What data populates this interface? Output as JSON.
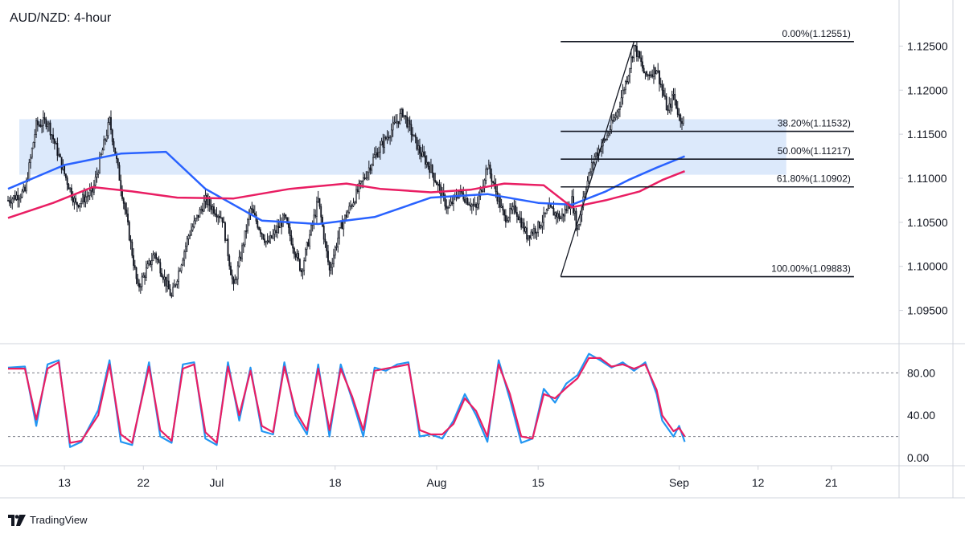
{
  "chart_data": [
    {
      "type": "candlestick",
      "title": "AUD/NZD: 4-hour",
      "ylim": [
        1.0915,
        1.1295
      ],
      "y_ticks": [
        {
          "value": 1.125,
          "label": "1.12500"
        },
        {
          "value": 1.12,
          "label": "1.12000"
        },
        {
          "value": 1.115,
          "label": "1.11500"
        },
        {
          "value": 1.11,
          "label": "1.11000"
        },
        {
          "value": 1.105,
          "label": "1.10500"
        },
        {
          "value": 1.1,
          "label": "1.10000"
        },
        {
          "value": 1.095,
          "label": "1.09500"
        }
      ],
      "x_ticks": [
        {
          "label": "13",
          "bar": 10
        },
        {
          "label": "22",
          "bar": 24
        },
        {
          "label": "Jul",
          "bar": 37
        },
        {
          "label": "18",
          "bar": 58
        },
        {
          "label": "Aug",
          "bar": 76
        },
        {
          "label": "15",
          "bar": 94
        },
        {
          "label": "Sep",
          "bar": 119
        },
        {
          "label": "12",
          "bar": 133
        },
        {
          "label": "21",
          "bar": 146
        }
      ],
      "x_range_bars": [
        0,
        158
      ],
      "price_path": [
        [
          0,
          1.1075
        ],
        [
          3,
          1.1085
        ],
        [
          5,
          1.116
        ],
        [
          7,
          1.1165
        ],
        [
          10,
          1.1105
        ],
        [
          12,
          1.107
        ],
        [
          15,
          1.1085
        ],
        [
          18,
          1.1165
        ],
        [
          21,
          1.1055
        ],
        [
          23,
          1.0975
        ],
        [
          26,
          1.1015
        ],
        [
          29,
          1.0965
        ],
        [
          32,
          1.1035
        ],
        [
          35,
          1.1075
        ],
        [
          38,
          1.1055
        ],
        [
          40,
          1.0975
        ],
        [
          43,
          1.1065
        ],
        [
          46,
          1.1025
        ],
        [
          49,
          1.1055
        ],
        [
          52,
          1.0995
        ],
        [
          55,
          1.1075
        ],
        [
          57,
          1.0995
        ],
        [
          59,
          1.1045
        ],
        [
          62,
          1.1085
        ],
        [
          65,
          1.1125
        ],
        [
          68,
          1.1155
        ],
        [
          70,
          1.1175
        ],
        [
          73,
          1.113
        ],
        [
          75,
          1.111
        ],
        [
          78,
          1.1065
        ],
        [
          80,
          1.1085
        ],
        [
          83,
          1.1065
        ],
        [
          85,
          1.1115
        ],
        [
          88,
          1.1055
        ],
        [
          90,
          1.1065
        ],
        [
          92,
          1.1035
        ],
        [
          94,
          1.1045
        ],
        [
          96,
          1.1065
        ],
        [
          98,
          1.1055
        ],
        [
          100,
          1.1075
        ],
        [
          101,
          1.104
        ],
        [
          102,
          1.108
        ],
        [
          104,
          1.1125
        ],
        [
          106,
          1.1145
        ],
        [
          108,
          1.1175
        ],
        [
          110,
          1.122
        ],
        [
          111,
          1.125
        ],
        [
          112,
          1.1235
        ],
        [
          113,
          1.1215
        ],
        [
          115,
          1.1225
        ],
        [
          117,
          1.1175
        ],
        [
          118,
          1.1195
        ],
        [
          119,
          1.117
        ],
        [
          120,
          1.1165
        ]
      ],
      "moving_averages": [
        {
          "color": "#2962ff",
          "points": [
            [
              0,
              1.1088
            ],
            [
              10,
              1.1115
            ],
            [
              20,
              1.1128
            ],
            [
              28,
              1.113
            ],
            [
              35,
              1.1088
            ],
            [
              45,
              1.1052
            ],
            [
              55,
              1.1048
            ],
            [
              65,
              1.1056
            ],
            [
              75,
              1.1078
            ],
            [
              85,
              1.1082
            ],
            [
              94,
              1.1072
            ],
            [
              100,
              1.107
            ],
            [
              106,
              1.1085
            ],
            [
              110,
              1.1098
            ],
            [
              115,
              1.1112
            ],
            [
              120,
              1.1125
            ]
          ]
        },
        {
          "color": "#e91e63",
          "points": [
            [
              0,
              1.1055
            ],
            [
              8,
              1.1072
            ],
            [
              15,
              1.109
            ],
            [
              22,
              1.1085
            ],
            [
              30,
              1.1078
            ],
            [
              40,
              1.1077
            ],
            [
              50,
              1.1088
            ],
            [
              60,
              1.1094
            ],
            [
              66,
              1.1088
            ],
            [
              75,
              1.1084
            ],
            [
              82,
              1.1087
            ],
            [
              88,
              1.1094
            ],
            [
              95,
              1.1092
            ],
            [
              100,
              1.1067
            ],
            [
              106,
              1.1075
            ],
            [
              112,
              1.1085
            ],
            [
              116,
              1.1098
            ],
            [
              120,
              1.1108
            ]
          ]
        }
      ],
      "zone": {
        "from_bar": 2,
        "to_bar": 138,
        "y_top": 1.1167,
        "y_bottom": 1.1104,
        "color": "#dce9fb"
      },
      "trend_line": {
        "from": [
          98,
          1.09883
        ],
        "to": [
          111,
          1.12551
        ]
      },
      "fibonacci": {
        "from_bar": 98,
        "to_bar": 150,
        "levels": [
          {
            "label": "0.00%(1.12551)",
            "value": 1.12551
          },
          {
            "label": "38.20%(1.11532)",
            "value": 1.11532
          },
          {
            "label": "50.00%(1.11217)",
            "value": 1.11217
          },
          {
            "label": "61.80%(1.10902)",
            "value": 1.10902
          },
          {
            "label": "100.00%(1.09883)",
            "value": 1.09883
          }
        ]
      }
    },
    {
      "type": "line",
      "title": "",
      "ylim": [
        0,
        100
      ],
      "y_ticks": [
        {
          "value": 80,
          "label": "80.00"
        },
        {
          "value": 40,
          "label": "40.00"
        },
        {
          "value": 0,
          "label": "0.00"
        }
      ],
      "reference_lines": [
        80,
        20
      ],
      "series": [
        {
          "color": "#2196f3",
          "points": [
            [
              0,
              85
            ],
            [
              3,
              86
            ],
            [
              5,
              30
            ],
            [
              7,
              88
            ],
            [
              9,
              92
            ],
            [
              11,
              10
            ],
            [
              13,
              15
            ],
            [
              16,
              45
            ],
            [
              18,
              92
            ],
            [
              20,
              15
            ],
            [
              22,
              12
            ],
            [
              25,
              90
            ],
            [
              27,
              20
            ],
            [
              29,
              14
            ],
            [
              31,
              88
            ],
            [
              33,
              90
            ],
            [
              35,
              18
            ],
            [
              37,
              12
            ],
            [
              39,
              90
            ],
            [
              41,
              35
            ],
            [
              43,
              85
            ],
            [
              45,
              25
            ],
            [
              47,
              22
            ],
            [
              49,
              90
            ],
            [
              51,
              40
            ],
            [
              53,
              22
            ],
            [
              55,
              88
            ],
            [
              57,
              20
            ],
            [
              59,
              88
            ],
            [
              61,
              55
            ],
            [
              63,
              20
            ],
            [
              65,
              85
            ],
            [
              67,
              82
            ],
            [
              69,
              88
            ],
            [
              71,
              90
            ],
            [
              73,
              20
            ],
            [
              75,
              22
            ],
            [
              77,
              18
            ],
            [
              79,
              35
            ],
            [
              81,
              60
            ],
            [
              83,
              40
            ],
            [
              85,
              15
            ],
            [
              87,
              92
            ],
            [
              89,
              55
            ],
            [
              91,
              14
            ],
            [
              93,
              18
            ],
            [
              95,
              65
            ],
            [
              97,
              52
            ],
            [
              99,
              70
            ],
            [
              101,
              78
            ],
            [
              103,
              98
            ],
            [
              105,
              92
            ],
            [
              107,
              85
            ],
            [
              109,
              90
            ],
            [
              111,
              82
            ],
            [
              113,
              90
            ],
            [
              115,
              60
            ],
            [
              116,
              35
            ],
            [
              118,
              20
            ],
            [
              119,
              30
            ],
            [
              120,
              15
            ]
          ]
        },
        {
          "color": "#e91e63",
          "points": [
            [
              0,
              84
            ],
            [
              3,
              84
            ],
            [
              5,
              36
            ],
            [
              7,
              84
            ],
            [
              9,
              90
            ],
            [
              11,
              14
            ],
            [
              13,
              16
            ],
            [
              16,
              40
            ],
            [
              18,
              88
            ],
            [
              20,
              22
            ],
            [
              22,
              14
            ],
            [
              25,
              86
            ],
            [
              27,
              26
            ],
            [
              29,
              16
            ],
            [
              31,
              84
            ],
            [
              33,
              88
            ],
            [
              35,
              24
            ],
            [
              37,
              14
            ],
            [
              39,
              86
            ],
            [
              41,
              40
            ],
            [
              43,
              82
            ],
            [
              45,
              30
            ],
            [
              47,
              24
            ],
            [
              49,
              86
            ],
            [
              51,
              44
            ],
            [
              53,
              26
            ],
            [
              55,
              84
            ],
            [
              57,
              26
            ],
            [
              59,
              84
            ],
            [
              61,
              58
            ],
            [
              63,
              26
            ],
            [
              65,
              82
            ],
            [
              67,
              84
            ],
            [
              69,
              86
            ],
            [
              71,
              88
            ],
            [
              73,
              26
            ],
            [
              75,
              22
            ],
            [
              77,
              22
            ],
            [
              79,
              32
            ],
            [
              81,
              56
            ],
            [
              83,
              44
            ],
            [
              85,
              20
            ],
            [
              87,
              88
            ],
            [
              89,
              60
            ],
            [
              91,
              20
            ],
            [
              93,
              18
            ],
            [
              95,
              60
            ],
            [
              97,
              56
            ],
            [
              99,
              66
            ],
            [
              101,
              75
            ],
            [
              103,
              94
            ],
            [
              105,
              94
            ],
            [
              107,
              86
            ],
            [
              109,
              88
            ],
            [
              111,
              84
            ],
            [
              113,
              88
            ],
            [
              115,
              64
            ],
            [
              116,
              40
            ],
            [
              118,
              25
            ],
            [
              119,
              28
            ],
            [
              120,
              20
            ]
          ]
        }
      ]
    }
  ],
  "footer": {
    "logo": "tv-logo-icon",
    "brand": "TradingView"
  }
}
